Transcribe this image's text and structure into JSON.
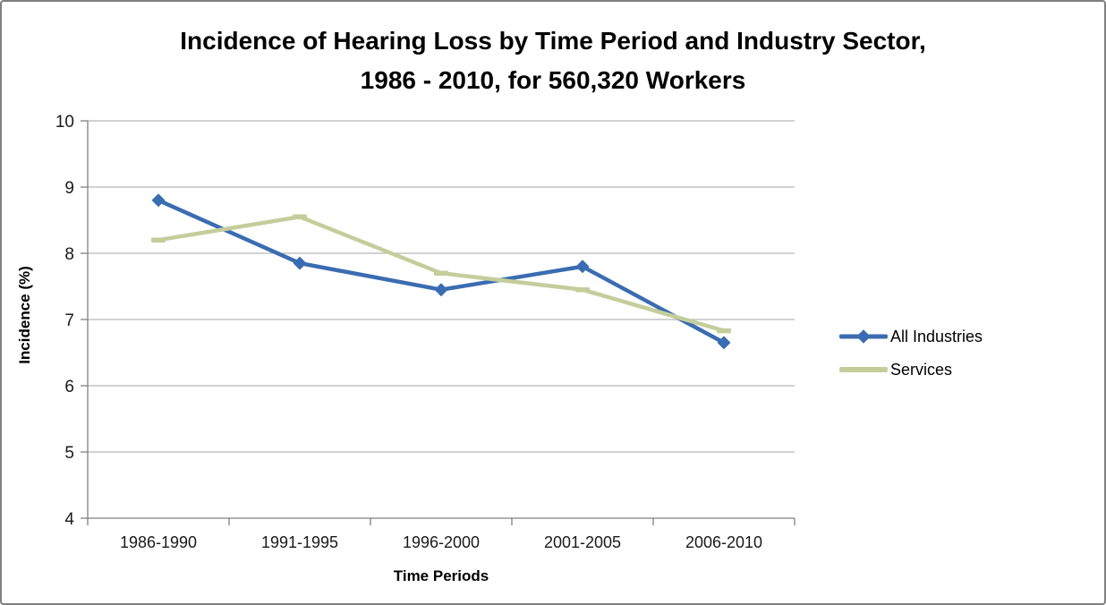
{
  "title": {
    "line1": "Incidence of Hearing Loss by Time Period and Industry Sector,",
    "line2": "1986 - 2010, for 560,320 Workers"
  },
  "chart_data": {
    "type": "line",
    "categories": [
      "1986-1990",
      "1991-1995",
      "1996-2000",
      "2001-2005",
      "2006-2010"
    ],
    "series": [
      {
        "name": "All Industries",
        "values": [
          8.8,
          7.85,
          7.45,
          7.8,
          6.65
        ],
        "color": "#3a6cb1",
        "marker": "diamond"
      },
      {
        "name": "Services",
        "values": [
          8.2,
          8.55,
          7.7,
          7.45,
          6.83
        ],
        "color": "#c4cd9b",
        "marker": "dash"
      }
    ],
    "xlabel": "Time Periods",
    "ylabel": "Incidence (%)",
    "ylim": [
      4,
      10
    ],
    "yticks": [
      10,
      9,
      8,
      7,
      6,
      5,
      4
    ],
    "grid": true,
    "legend_position": "right",
    "colors": {
      "gridline": "#a6a6a6",
      "axis": "#808080",
      "tick_label": "#1a1a1a"
    }
  }
}
